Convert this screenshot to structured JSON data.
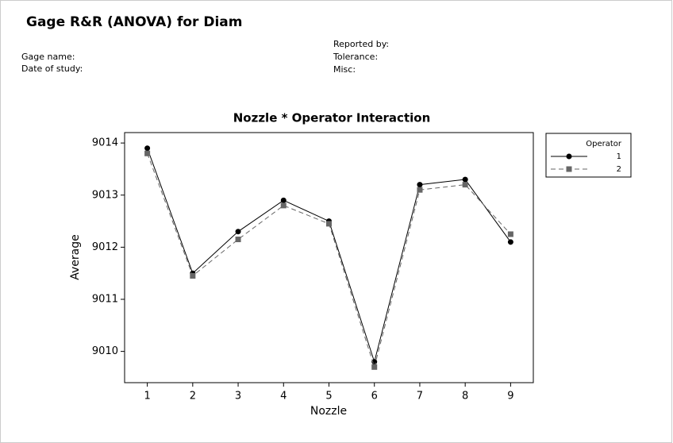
{
  "header": {
    "title": "Gage R&R (ANOVA) for Diam",
    "gage_name": "Gage name:",
    "date_of_study": "Date of study:",
    "reported_by": "Reported by:",
    "tolerance": "Tolerance:",
    "misc": "Misc:"
  },
  "chart_data": {
    "type": "line",
    "title": "Nozzle * Operator Interaction",
    "x_label": "Nozzle",
    "y_label": "Average",
    "x": [
      1,
      2,
      3,
      4,
      5,
      6,
      7,
      8,
      9
    ],
    "xlim": [
      0.5,
      9.5
    ],
    "xticks": [
      1,
      2,
      3,
      4,
      5,
      6,
      7,
      8,
      9
    ],
    "ylim": [
      9009.4,
      9014.2
    ],
    "yticks": [
      9010,
      9011,
      9012,
      9013,
      9014
    ],
    "legend_title": "Operator",
    "legend_position": "outside-right",
    "series": [
      {
        "name": "1",
        "color": "#000000",
        "line_style": "solid",
        "marker": "circle",
        "values": [
          9013.9,
          9011.5,
          9012.3,
          9012.9,
          9012.5,
          9009.8,
          9013.2,
          9013.3,
          9012.1
        ]
      },
      {
        "name": "2",
        "color": "#666666",
        "line_style": "dashed",
        "marker": "square",
        "values": [
          9013.8,
          9011.45,
          9012.15,
          9012.8,
          9012.45,
          9009.7,
          9013.1,
          9013.2,
          9012.25
        ]
      }
    ]
  }
}
